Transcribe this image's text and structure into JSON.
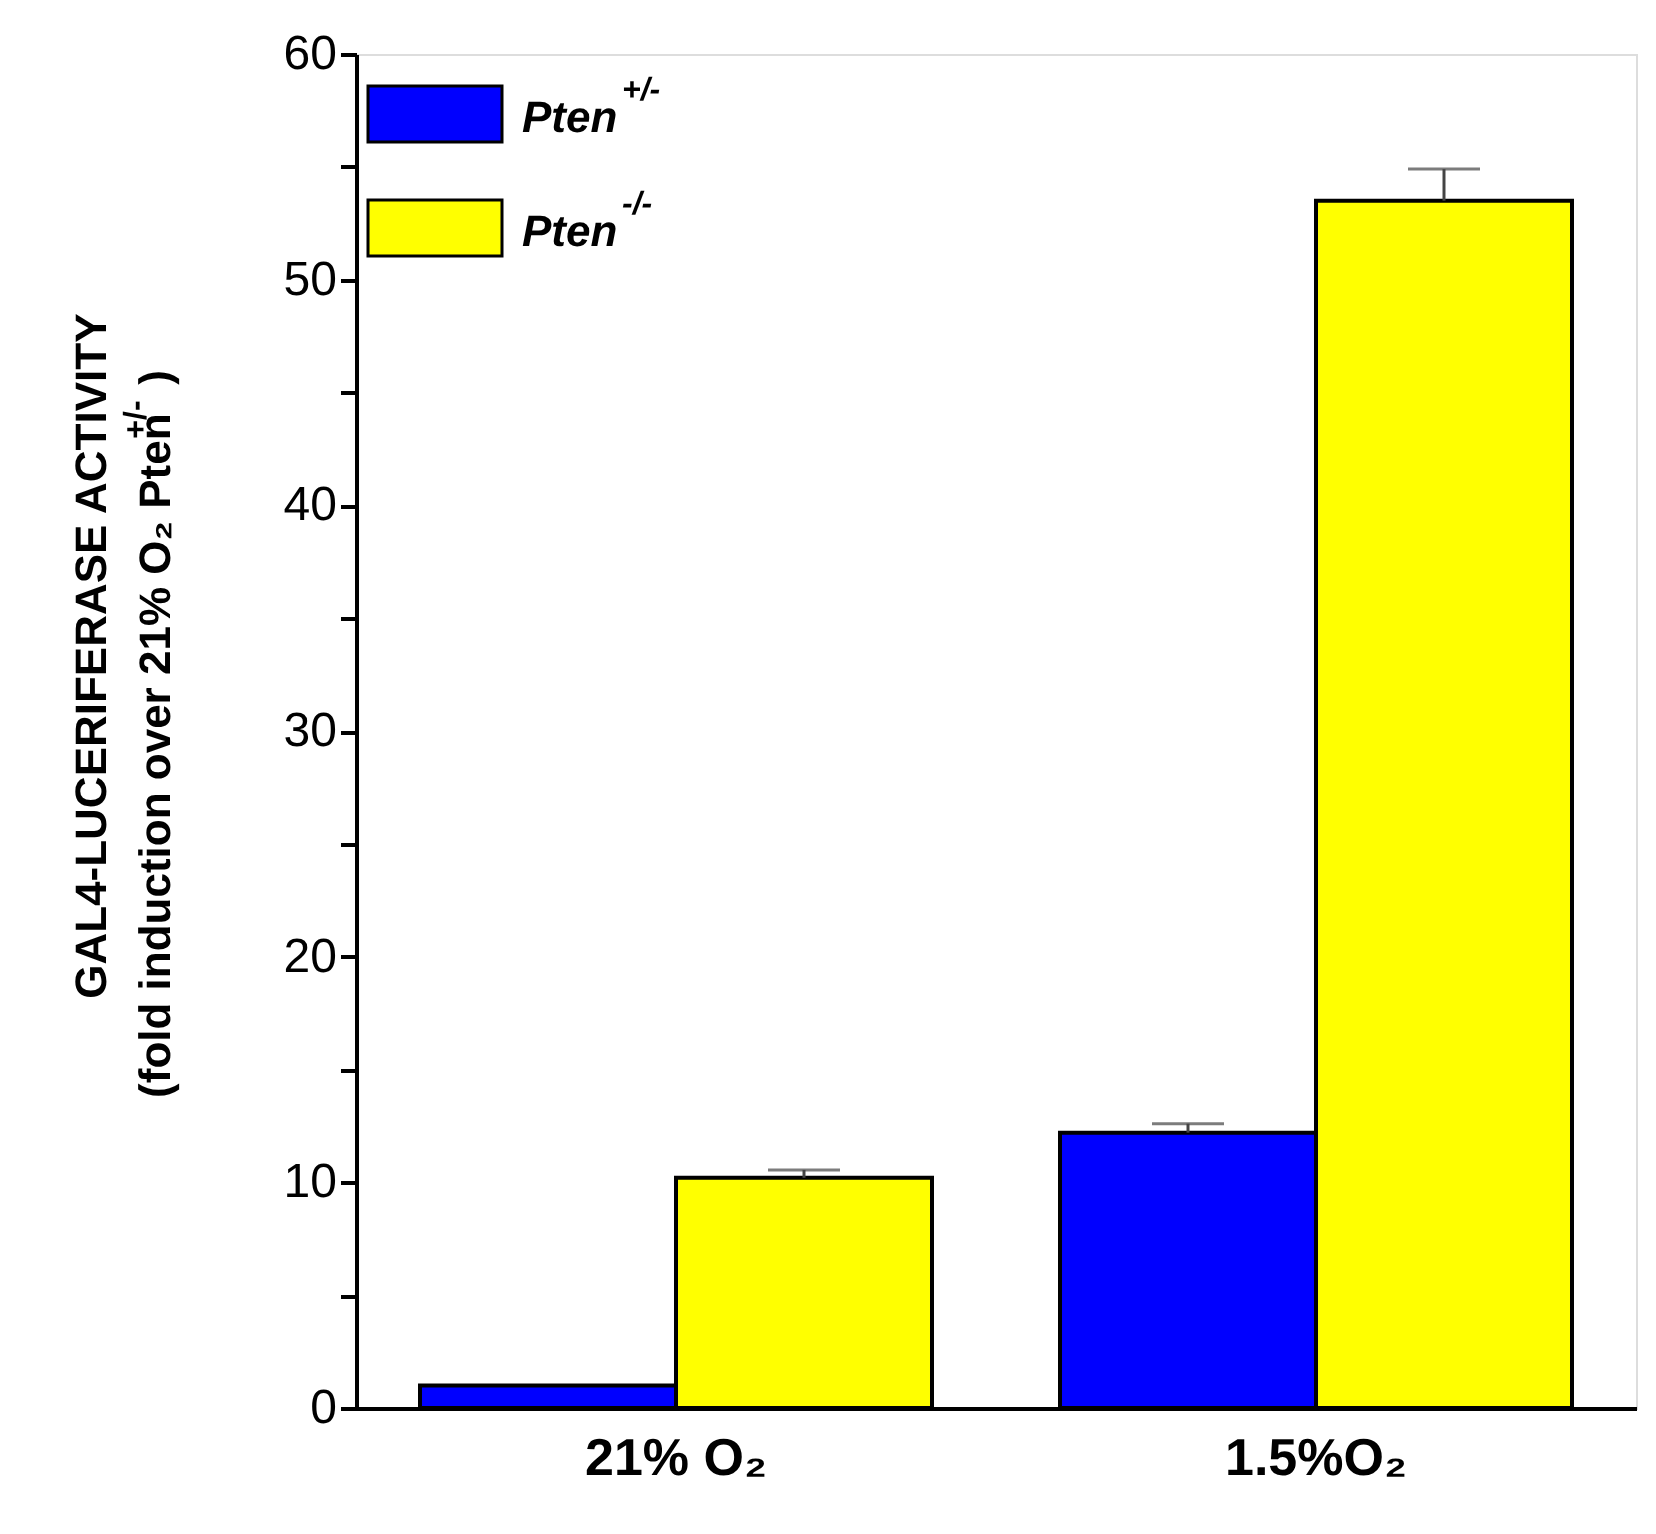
{
  "chart_data": {
    "type": "bar",
    "xlabel": null,
    "ylabel": [
      "GAL4-LUCERIFERASE ACTIVITY",
      "(fold induction over 21% O₂ Pten$^{+/-}$)"
    ],
    "categories": [
      "21% O₂",
      "1.5%O₂"
    ],
    "series": [
      {
        "name": "Pten$^{+/-}$",
        "color": "#0000ff",
        "values": [
          1.0,
          12.2
        ],
        "errors": [
          null,
          0.4
        ]
      },
      {
        "name": "Pten$^{-/-}$",
        "color": "#ffff00",
        "values": [
          10.2,
          53.5
        ],
        "errors": [
          0.35,
          1.4
        ]
      }
    ],
    "ylim": [
      0,
      60
    ],
    "yticks": [
      0,
      {
        "value": 5,
        "label": null
      },
      10,
      {
        "value": 15,
        "label": null
      },
      20,
      {
        "value": 25,
        "label": null
      },
      30,
      {
        "value": 35,
        "label": null
      },
      40,
      {
        "value": 45,
        "label": null
      },
      50,
      {
        "value": 55,
        "label": null
      },
      60
    ],
    "legend": "top left",
    "grid": false
  }
}
